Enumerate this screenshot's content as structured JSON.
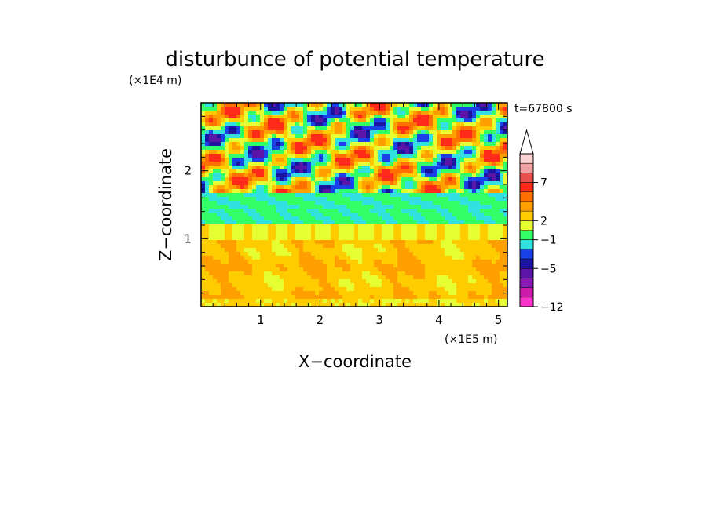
{
  "chart_data": {
    "type": "heatmap",
    "title": "disturbunce of potential temperature",
    "xlabel": "X−coordinate",
    "ylabel": "Z−coordinate",
    "x_unit": "(×1E5 m)",
    "y_unit": "(×1E4 m)",
    "time_label": "t=67800 s",
    "xlim": [
      0,
      5.15
    ],
    "ylim": [
      0,
      3.0
    ],
    "x_ticks": [
      {
        "value": 1,
        "label": "1"
      },
      {
        "value": 2,
        "label": "2"
      },
      {
        "value": 3,
        "label": "3"
      },
      {
        "value": 4,
        "label": "4"
      },
      {
        "value": 5,
        "label": "5"
      }
    ],
    "y_ticks": [
      {
        "value": 1,
        "label": "1"
      },
      {
        "value": 2,
        "label": "2"
      }
    ],
    "colorbar": {
      "levels": [
        {
          "color": "#ff33cc"
        },
        {
          "color": "#cc1aaa"
        },
        {
          "color": "#8a1ab4"
        },
        {
          "color": "#5a14a8"
        },
        {
          "color": "#1a14a0"
        },
        {
          "color": "#1a40e8"
        },
        {
          "color": "#33e0e0"
        },
        {
          "color": "#33ff66"
        },
        {
          "color": "#e6ff33"
        },
        {
          "color": "#ffcc00"
        },
        {
          "color": "#ffa000"
        },
        {
          "color": "#ff7000"
        },
        {
          "color": "#ff2a1a"
        },
        {
          "color": "#e85050"
        },
        {
          "color": "#f0a0a0"
        },
        {
          "color": "#fad2d2"
        }
      ],
      "tick_labels": [
        {
          "index": 0,
          "label": "−12"
        },
        {
          "index": 4,
          "label": "−5"
        },
        {
          "index": 7,
          "label": "−1"
        },
        {
          "index": 9,
          "label": "2"
        },
        {
          "index": 13,
          "label": "7"
        }
      ],
      "extend_top": true
    }
  }
}
